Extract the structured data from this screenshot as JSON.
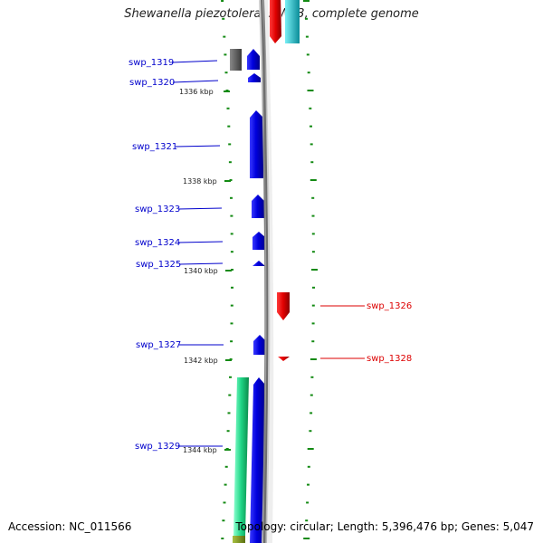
{
  "title": "Shewanella piezotolerans WP3, complete genome",
  "footer": {
    "accession": "Accession: NC_011566",
    "topology": "Topology: circular; Length: 5,396,476 bp; Genes: 5,047"
  },
  "ticks": [
    {
      "label": "1336 kbp"
    },
    {
      "label": "1338 kbp"
    },
    {
      "label": "1340 kbp"
    },
    {
      "label": "1342 kbp"
    },
    {
      "label": "1344 kbp"
    }
  ],
  "genes_left": [
    {
      "label": "swp_1319"
    },
    {
      "label": "swp_1320"
    },
    {
      "label": "swp_1321"
    },
    {
      "label": "swp_1323"
    },
    {
      "label": "swp_1324"
    },
    {
      "label": "swp_1325"
    },
    {
      "label": "swp_1327"
    },
    {
      "label": "swp_1329"
    }
  ],
  "genes_right": [
    {
      "label": "swp_1326"
    },
    {
      "label": "swp_1328"
    }
  ],
  "colors": {
    "forward_cds": "#1a1aee",
    "reverse_cds": "#ee1111",
    "gray_feature": "#666666",
    "cyan_feature": "#22c4d0",
    "green_feature": "#2ee89a",
    "tick_green": "#138a13",
    "backbone": "#8a8a8a"
  }
}
